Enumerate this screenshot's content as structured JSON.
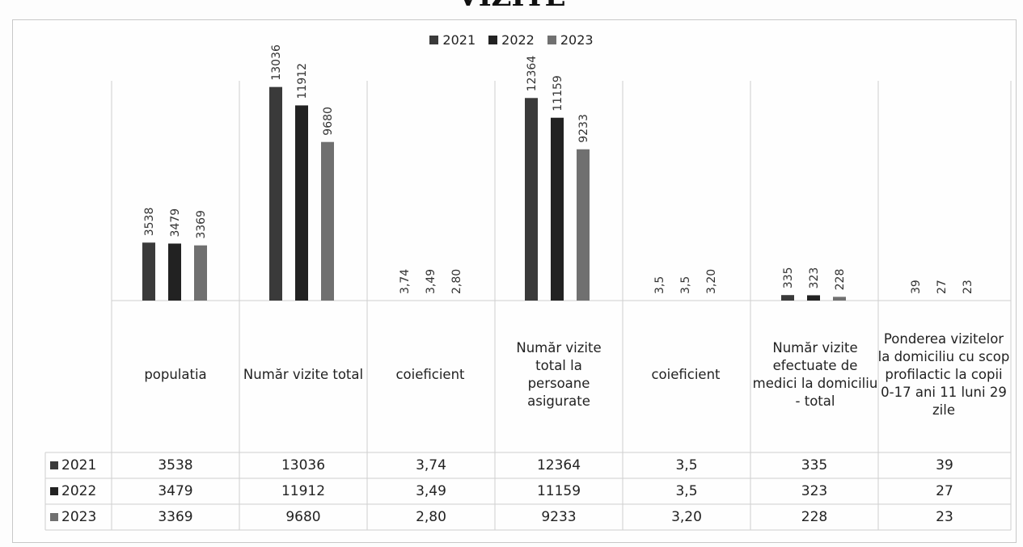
{
  "title": "VIZITE",
  "colors": {
    "2021": "#3a3a3a",
    "2022": "#222222",
    "2023": "#707070"
  },
  "chart_data": {
    "type": "bar",
    "title": "VIZITE",
    "xlabel": "",
    "ylabel": "",
    "legend_position": "top-center",
    "grid": false,
    "categories": [
      "populatia",
      "Număr vizite total",
      "coieficient",
      "Număr vizite total la persoane asigurate",
      "coieficient",
      "Număr vizite efectuate de medici la domiciliu - total",
      "Ponderea vizitelor la domiciliu cu scop profilactic la copii 0-17 ani 11 luni 29 zile"
    ],
    "series": [
      {
        "name": "2021",
        "values": [
          3538,
          13036,
          3.74,
          12364,
          3.5,
          335,
          39
        ],
        "labels": [
          "3538",
          "13036",
          "3,74",
          "12364",
          "3,5",
          "335",
          "39"
        ]
      },
      {
        "name": "2022",
        "values": [
          3479,
          11912,
          3.49,
          11159,
          3.5,
          323,
          27
        ],
        "labels": [
          "3479",
          "11912",
          "3,49",
          "11159",
          "3,5",
          "323",
          "27"
        ]
      },
      {
        "name": "2023",
        "values": [
          3369,
          9680,
          2.8,
          9233,
          3.2,
          228,
          23
        ],
        "labels": [
          "3369",
          "9680",
          "2,80",
          "9233",
          "3,20",
          "228",
          "23"
        ]
      }
    ],
    "ylim": [
      0,
      14400
    ]
  }
}
